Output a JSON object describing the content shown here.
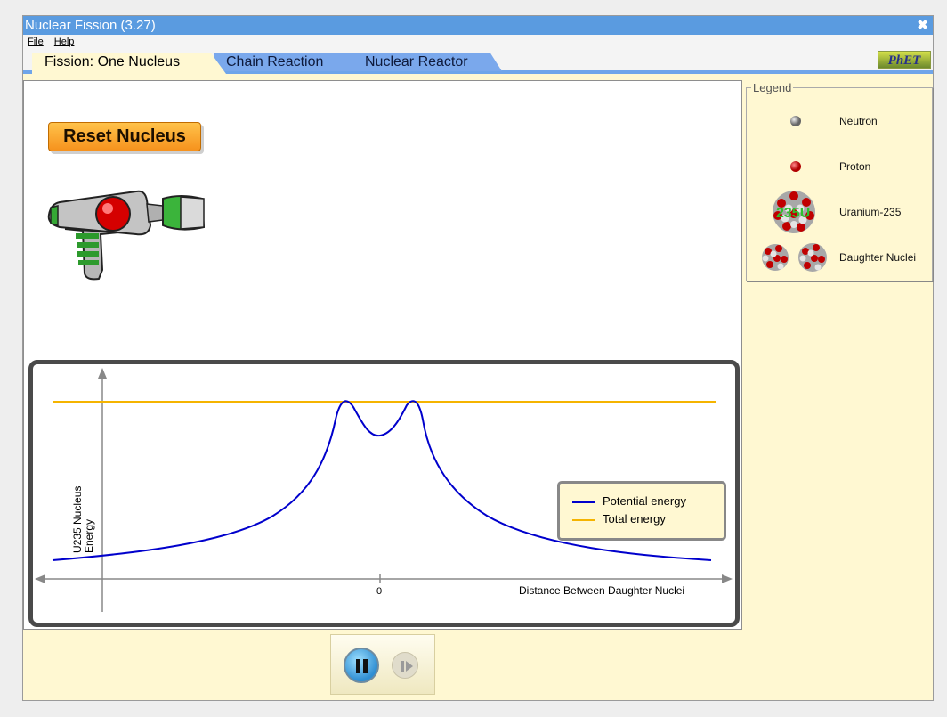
{
  "window": {
    "title": "Nuclear Fission (3.27)",
    "close_symbol": "✖"
  },
  "menu": {
    "items": [
      "File",
      "Help"
    ]
  },
  "tabs": [
    {
      "label": "Fission: One Nucleus",
      "active": true
    },
    {
      "label": "Chain Reaction",
      "active": false
    },
    {
      "label": "Nuclear Reactor",
      "active": false
    }
  ],
  "logo": {
    "text": "PhET"
  },
  "controls": {
    "reset_label": "Reset Nucleus"
  },
  "legend": {
    "title": "Legend",
    "items": [
      {
        "label": "Neutron",
        "icon": "neutron-icon"
      },
      {
        "label": "Proton",
        "icon": "proton-icon"
      },
      {
        "label": "Uranium-235",
        "icon": "uranium-235-icon",
        "badge": "235U"
      },
      {
        "label": "Daughter Nuclei",
        "icon": "daughter-nuclei-icon"
      }
    ]
  },
  "graph": {
    "ylabel": "U235 Nucleus\nEnergy",
    "xlabel": "Distance Between Daughter Nuclei",
    "x_tick": "0",
    "legend": [
      {
        "label": "Potential energy",
        "color": "#0000cc"
      },
      {
        "label": "Total energy",
        "color": "#f5b400"
      }
    ]
  },
  "colors": {
    "titlebar": "#5a9be0",
    "panel_bg": "#fff8d2",
    "reset_button": "#f6921d",
    "potential": "#0000cc",
    "total": "#f5b400"
  }
}
